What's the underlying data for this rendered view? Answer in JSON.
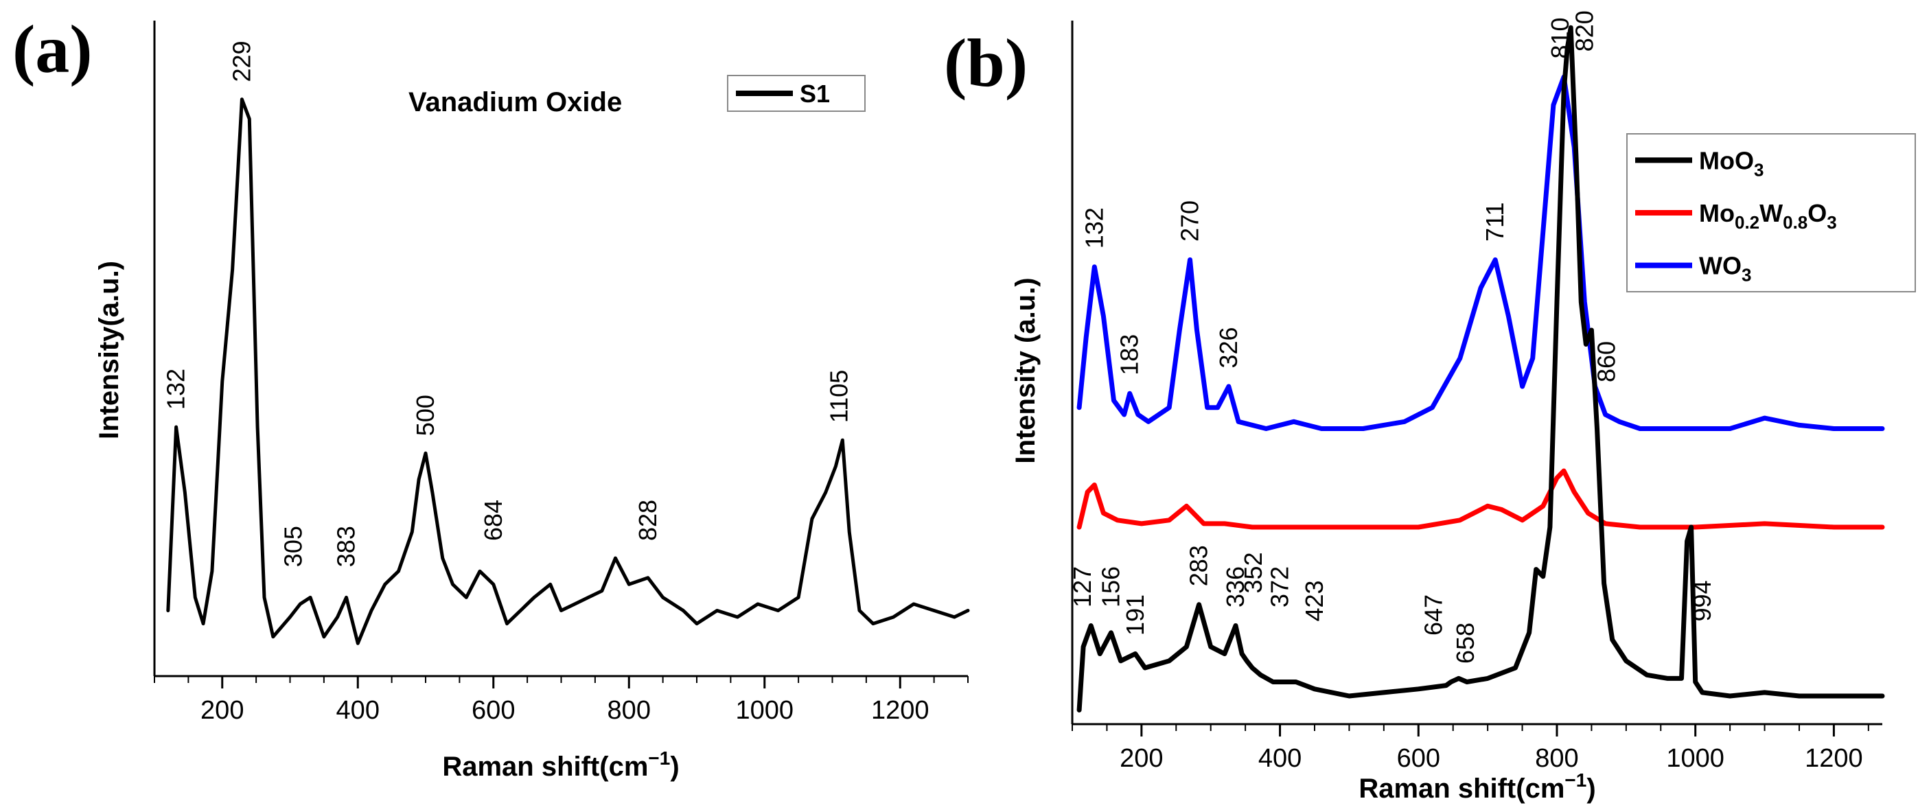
{
  "chart_data": [
    {
      "type": "line",
      "panel": "(a)",
      "title": "Vanadium Oxide",
      "xlabel": "Raman shift(cm",
      "xlabel_sup": "−1",
      "xlabel_end": ")",
      "ylabel": "Intensity(a.u.)",
      "xlim": [
        100,
        1300
      ],
      "ylim": [
        0,
        100
      ],
      "xticks": [
        200,
        400,
        600,
        800,
        1000,
        1200
      ],
      "legend": [
        {
          "name": "S1",
          "color": "#000000"
        }
      ],
      "series": [
        {
          "name": "S1",
          "color": "#000000",
          "points": [
            [
              120,
              10
            ],
            [
              132,
              38
            ],
            [
              145,
              28
            ],
            [
              160,
              12
            ],
            [
              172,
              8
            ],
            [
              185,
              16
            ],
            [
              200,
              45
            ],
            [
              215,
              62
            ],
            [
              229,
              88
            ],
            [
              240,
              85
            ],
            [
              252,
              38
            ],
            [
              262,
              12
            ],
            [
              275,
              6
            ],
            [
              300,
              9
            ],
            [
              315,
              11
            ],
            [
              330,
              12
            ],
            [
              350,
              6
            ],
            [
              370,
              9
            ],
            [
              383,
              12
            ],
            [
              400,
              5
            ],
            [
              420,
              10
            ],
            [
              440,
              14
            ],
            [
              460,
              16
            ],
            [
              480,
              22
            ],
            [
              490,
              30
            ],
            [
              500,
              34
            ],
            [
              510,
              28
            ],
            [
              525,
              18
            ],
            [
              540,
              14
            ],
            [
              560,
              12
            ],
            [
              580,
              16
            ],
            [
              600,
              14
            ],
            [
              620,
              8
            ],
            [
              640,
              10
            ],
            [
              660,
              12
            ],
            [
              684,
              14
            ],
            [
              700,
              10
            ],
            [
              720,
              11
            ],
            [
              740,
              12
            ],
            [
              760,
              13
            ],
            [
              780,
              18
            ],
            [
              800,
              14
            ],
            [
              828,
              15
            ],
            [
              850,
              12
            ],
            [
              880,
              10
            ],
            [
              900,
              8
            ],
            [
              930,
              10
            ],
            [
              960,
              9
            ],
            [
              990,
              11
            ],
            [
              1020,
              10
            ],
            [
              1050,
              12
            ],
            [
              1070,
              24
            ],
            [
              1090,
              28
            ],
            [
              1105,
              32
            ],
            [
              1115,
              36
            ],
            [
              1125,
              22
            ],
            [
              1140,
              10
            ],
            [
              1160,
              8
            ],
            [
              1190,
              9
            ],
            [
              1220,
              11
            ],
            [
              1250,
              10
            ],
            [
              1280,
              9
            ],
            [
              1300,
              10
            ]
          ]
        }
      ],
      "peak_labels": [
        {
          "text": "132",
          "x": 132,
          "y": 40
        },
        {
          "text": "229",
          "x": 229,
          "y": 90
        },
        {
          "text": "305",
          "x": 305,
          "y": 16
        },
        {
          "text": "383",
          "x": 383,
          "y": 16
        },
        {
          "text": "500",
          "x": 500,
          "y": 36
        },
        {
          "text": "684",
          "x": 600,
          "y": 20
        },
        {
          "text": "828",
          "x": 828,
          "y": 20
        },
        {
          "text": "1105",
          "x": 1110,
          "y": 38
        }
      ]
    },
    {
      "type": "line",
      "panel": "(b)",
      "xlabel": "Raman shift(cm",
      "xlabel_sup": "−1",
      "xlabel_end": ")",
      "ylabel": "Intensity (a.u.)",
      "xlim": [
        100,
        1270
      ],
      "ylim": [
        0,
        100
      ],
      "xticks": [
        200,
        400,
        600,
        800,
        1000,
        1200
      ],
      "legend": [
        {
          "name": "MoO",
          "sub": "3",
          "color": "#000000"
        },
        {
          "name": "Mo",
          "sub": "0.2",
          "name2": "W",
          "sub2": "0.8",
          "name3": "O",
          "sub3": "3",
          "color": "#ff0000"
        },
        {
          "name": "WO",
          "sub": "3",
          "color": "#0000ff"
        }
      ],
      "series": [
        {
          "name": "WO3",
          "color": "#0000ff",
          "points": [
            [
              110,
              45
            ],
            [
              120,
              55
            ],
            [
              132,
              65
            ],
            [
              145,
              58
            ],
            [
              160,
              46
            ],
            [
              175,
              44
            ],
            [
              183,
              47
            ],
            [
              195,
              44
            ],
            [
              210,
              43
            ],
            [
              240,
              45
            ],
            [
              255,
              56
            ],
            [
              270,
              66
            ],
            [
              280,
              56
            ],
            [
              295,
              45
            ],
            [
              310,
              45
            ],
            [
              326,
              48
            ],
            [
              340,
              43
            ],
            [
              380,
              42
            ],
            [
              420,
              43
            ],
            [
              460,
              42
            ],
            [
              520,
              42
            ],
            [
              580,
              43
            ],
            [
              620,
              45
            ],
            [
              660,
              52
            ],
            [
              690,
              62
            ],
            [
              711,
              66
            ],
            [
              730,
              58
            ],
            [
              750,
              48
            ],
            [
              765,
              52
            ],
            [
              780,
              70
            ],
            [
              795,
              88
            ],
            [
              810,
              92
            ],
            [
              825,
              82
            ],
            [
              840,
              60
            ],
            [
              855,
              48
            ],
            [
              870,
              44
            ],
            [
              890,
              43
            ],
            [
              920,
              42
            ],
            [
              960,
              42
            ],
            [
              1000,
              42
            ],
            [
              1050,
              42
            ],
            [
              1100,
              43.5
            ],
            [
              1150,
              42.5
            ],
            [
              1200,
              42
            ],
            [
              1270,
              42
            ]
          ]
        },
        {
          "name": "Mo0.2W0.8O3",
          "color": "#ff0000",
          "points": [
            [
              110,
              28
            ],
            [
              122,
              33
            ],
            [
              132,
              34
            ],
            [
              145,
              30
            ],
            [
              165,
              29
            ],
            [
              200,
              28.5
            ],
            [
              240,
              29
            ],
            [
              265,
              31
            ],
            [
              290,
              28.5
            ],
            [
              320,
              28.5
            ],
            [
              360,
              28
            ],
            [
              420,
              28
            ],
            [
              500,
              28
            ],
            [
              600,
              28
            ],
            [
              660,
              29
            ],
            [
              700,
              31
            ],
            [
              720,
              30.5
            ],
            [
              750,
              29
            ],
            [
              780,
              31
            ],
            [
              800,
              35
            ],
            [
              810,
              36
            ],
            [
              825,
              33
            ],
            [
              845,
              30
            ],
            [
              870,
              28.5
            ],
            [
              920,
              28
            ],
            [
              1000,
              28
            ],
            [
              1100,
              28.5
            ],
            [
              1200,
              28
            ],
            [
              1270,
              28
            ]
          ]
        },
        {
          "name": "MoO3",
          "color": "#000000",
          "points": [
            [
              110,
              2
            ],
            [
              116,
              11
            ],
            [
              127,
              14
            ],
            [
              140,
              10
            ],
            [
              156,
              13
            ],
            [
              170,
              9
            ],
            [
              191,
              10
            ],
            [
              205,
              8
            ],
            [
              240,
              9
            ],
            [
              265,
              11
            ],
            [
              283,
              17
            ],
            [
              300,
              11
            ],
            [
              320,
              10
            ],
            [
              336,
              14
            ],
            [
              345,
              10
            ],
            [
              352,
              9
            ],
            [
              360,
              8
            ],
            [
              372,
              7
            ],
            [
              390,
              6
            ],
            [
              423,
              6
            ],
            [
              450,
              5
            ],
            [
              500,
              4
            ],
            [
              550,
              4.5
            ],
            [
              600,
              5
            ],
            [
              640,
              5.5
            ],
            [
              647,
              6
            ],
            [
              658,
              6.5
            ],
            [
              670,
              6
            ],
            [
              700,
              6.5
            ],
            [
              740,
              8
            ],
            [
              760,
              13
            ],
            [
              770,
              22
            ],
            [
              780,
              21
            ],
            [
              790,
              28
            ],
            [
              800,
              60
            ],
            [
              810,
              90
            ],
            [
              815,
              96
            ],
            [
              820,
              99
            ],
            [
              828,
              80
            ],
            [
              835,
              60
            ],
            [
              842,
              54
            ],
            [
              850,
              56
            ],
            [
              858,
              42
            ],
            [
              868,
              20
            ],
            [
              880,
              12
            ],
            [
              900,
              9
            ],
            [
              930,
              7
            ],
            [
              960,
              6.5
            ],
            [
              980,
              6.5
            ],
            [
              988,
              26
            ],
            [
              994,
              28
            ],
            [
              1000,
              6
            ],
            [
              1010,
              4.5
            ],
            [
              1050,
              4
            ],
            [
              1100,
              4.5
            ],
            [
              1150,
              4
            ],
            [
              1200,
              4
            ],
            [
              1270,
              4
            ]
          ]
        }
      ],
      "peak_labels": [
        {
          "text": "132",
          "x": 132,
          "y": 67,
          "color": "#000000"
        },
        {
          "text": "183",
          "x": 183,
          "y": 49
        },
        {
          "text": "270",
          "x": 270,
          "y": 68
        },
        {
          "text": "326",
          "x": 326,
          "y": 50
        },
        {
          "text": "711",
          "x": 711,
          "y": 68
        },
        {
          "text": "810",
          "x": 805,
          "y": 94
        },
        {
          "text": "820",
          "x": 840,
          "y": 95
        },
        {
          "text": "860",
          "x": 872,
          "y": 48
        },
        {
          "text": "127",
          "x": 115,
          "y": 16
        },
        {
          "text": "156",
          "x": 156,
          "y": 16
        },
        {
          "text": "191",
          "x": 191,
          "y": 12
        },
        {
          "text": "283",
          "x": 283,
          "y": 19
        },
        {
          "text": "336",
          "x": 336,
          "y": 16
        },
        {
          "text": "352",
          "x": 362,
          "y": 18
        },
        {
          "text": "372",
          "x": 400,
          "y": 16
        },
        {
          "text": "423",
          "x": 450,
          "y": 14
        },
        {
          "text": "647",
          "x": 622,
          "y": 12
        },
        {
          "text": "658",
          "x": 668,
          "y": 8
        },
        {
          "text": "994",
          "x": 1010,
          "y": 14
        }
      ]
    }
  ]
}
